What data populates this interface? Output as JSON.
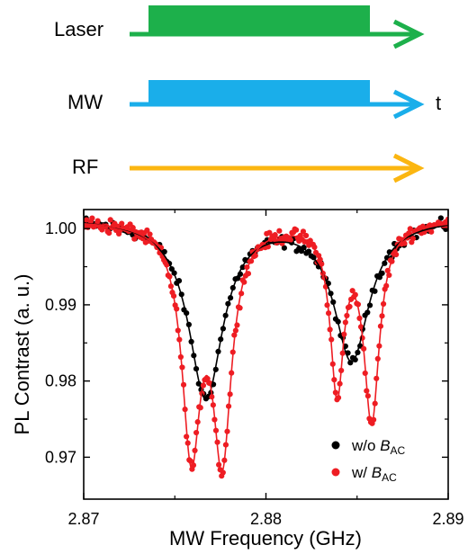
{
  "sequence": {
    "rows": [
      {
        "label": "Laser",
        "color": "#1db04b",
        "pulse": true
      },
      {
        "label": "MW",
        "color": "#1aaeea",
        "pulse": true
      },
      {
        "label": "RF",
        "color": "#fbb611",
        "pulse": false
      }
    ],
    "time_label": "t"
  },
  "chart_data": {
    "type": "scatter",
    "xlabel": "MW Frequency (GHz)",
    "ylabel": "PL Contrast (a. u.)",
    "xlim": [
      2.87,
      2.89
    ],
    "ylim": [
      0.9645,
      1.0025
    ],
    "xticks": [
      "2.87",
      "2.88",
      "2.89"
    ],
    "yticks": [
      "0.97",
      "0.98",
      "0.99",
      "1.00"
    ],
    "legend_position": "bottom-right",
    "series": [
      {
        "name": "w/o B_AC",
        "legend": {
          "prefix": "w/o ",
          "sym": "B",
          "sub": "AC"
        },
        "color": "#000000",
        "fit_color": "#000000",
        "baseline": 1.0015,
        "dips": [
          {
            "center": 2.8767,
            "depth": 0.0235,
            "width": 0.00115
          },
          {
            "center": 2.8847,
            "depth": 0.0185,
            "width": 0.00118
          }
        ],
        "noise": 0.0007,
        "points": 150
      },
      {
        "name": "w/ B_AC",
        "legend": {
          "prefix": "w/  ",
          "sym": "B",
          "sub": "AC"
        },
        "color": "#ee1d23",
        "fit_color": "#ee1d23",
        "baseline": 1.0012,
        "dips": [
          {
            "center": 2.8759,
            "depth": 0.029,
            "width": 0.00062
          },
          {
            "center": 2.8776,
            "depth": 0.0295,
            "width": 0.00062
          },
          {
            "center": 2.8839,
            "depth": 0.0215,
            "width": 0.00045
          },
          {
            "center": 2.8858,
            "depth": 0.0255,
            "width": 0.00052
          }
        ],
        "noise": 0.0008,
        "points": 260
      }
    ]
  }
}
